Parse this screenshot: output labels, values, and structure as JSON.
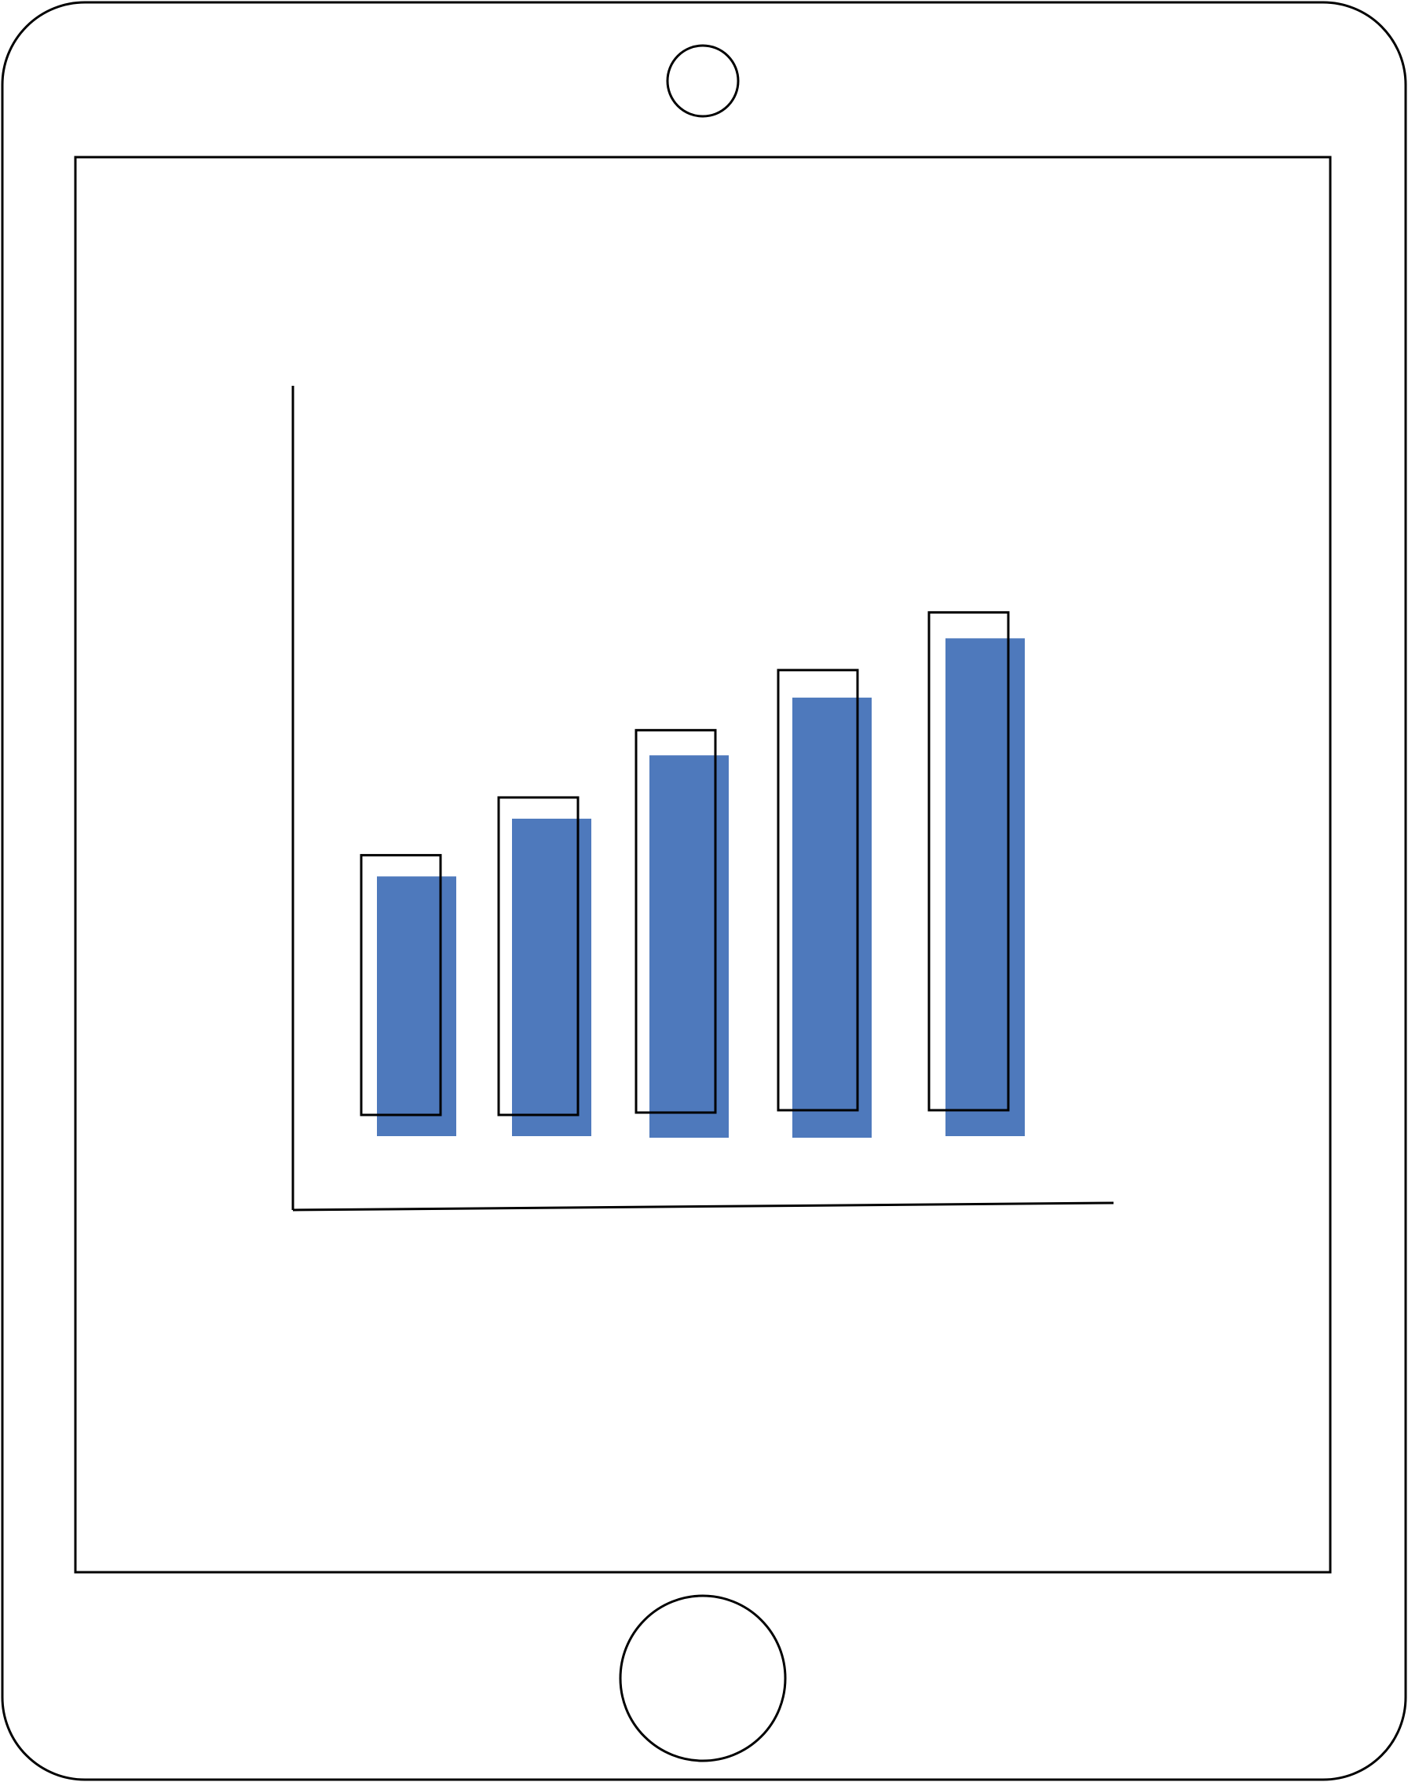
{
  "colors": {
    "bar_fill": "#4e79bc",
    "outline": "#000000",
    "background": "#ffffff"
  },
  "chart_data": {
    "type": "bar",
    "categories": [
      "",
      "",
      "",
      "",
      ""
    ],
    "series": [
      {
        "values": [
          36,
          44,
          53,
          61,
          69
        ]
      },
      {
        "values": [
          36,
          44,
          53,
          61,
          69
        ]
      }
    ],
    "ylim": [
      0,
      104
    ],
    "grid": false,
    "legend": "none"
  }
}
